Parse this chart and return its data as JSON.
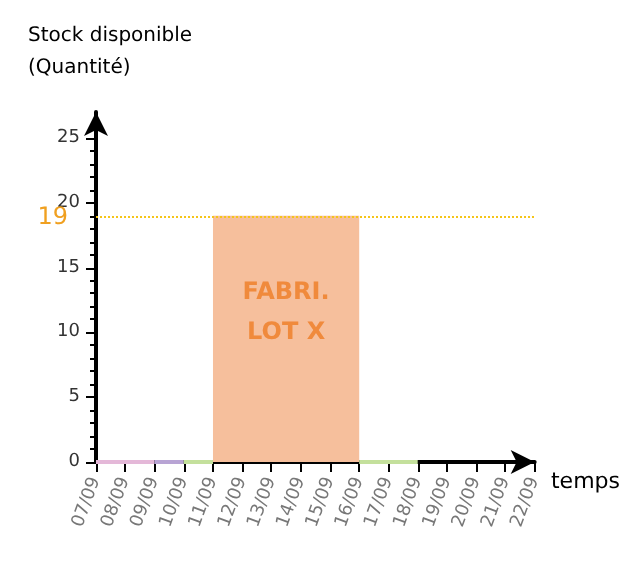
{
  "chart_data": {
    "type": "area",
    "xlabel": "temps",
    "ylabel": "Stock disponible\n(Quantité)",
    "categories": [
      "07/09",
      "08/09",
      "09/09",
      "10/09",
      "11/09",
      "12/09",
      "13/09",
      "14/09",
      "15/09",
      "16/09",
      "17/09",
      "18/09",
      "19/09",
      "20/09",
      "21/09",
      "22/09"
    ],
    "series": [
      {
        "type": "line",
        "color": "#e4b8d8",
        "values": [
          0,
          0,
          0,
          null,
          null,
          null,
          null,
          null,
          null,
          null,
          null,
          null,
          null,
          null,
          null,
          null
        ]
      },
      {
        "type": "line",
        "color": "#b8a4d4",
        "values": [
          null,
          null,
          0,
          0,
          null,
          null,
          null,
          null,
          null,
          null,
          null,
          null,
          null,
          null,
          null,
          null
        ]
      },
      {
        "type": "line",
        "color": "#c4e09c",
        "values": [
          null,
          null,
          null,
          0,
          0,
          null,
          null,
          null,
          null,
          0,
          0,
          0,
          null,
          null,
          null,
          null
        ]
      },
      {
        "color": "#f6bf9c",
        "values": [
          null,
          null,
          null,
          null,
          19,
          19,
          19,
          19,
          19,
          19,
          null,
          null,
          null,
          null,
          null,
          null
        ]
      }
    ],
    "ylim": [
      0,
      27
    ],
    "yticks": [
      0,
      5,
      10,
      15,
      20,
      25
    ],
    "grid": false,
    "marker": "none",
    "ref_lines": [
      {
        "axis": "y",
        "value": 19,
        "label": "19",
        "color": "#f5c518",
        "line_style": "dotted"
      }
    ],
    "annotations": [
      "FABRI.\nLOT X"
    ]
  }
}
